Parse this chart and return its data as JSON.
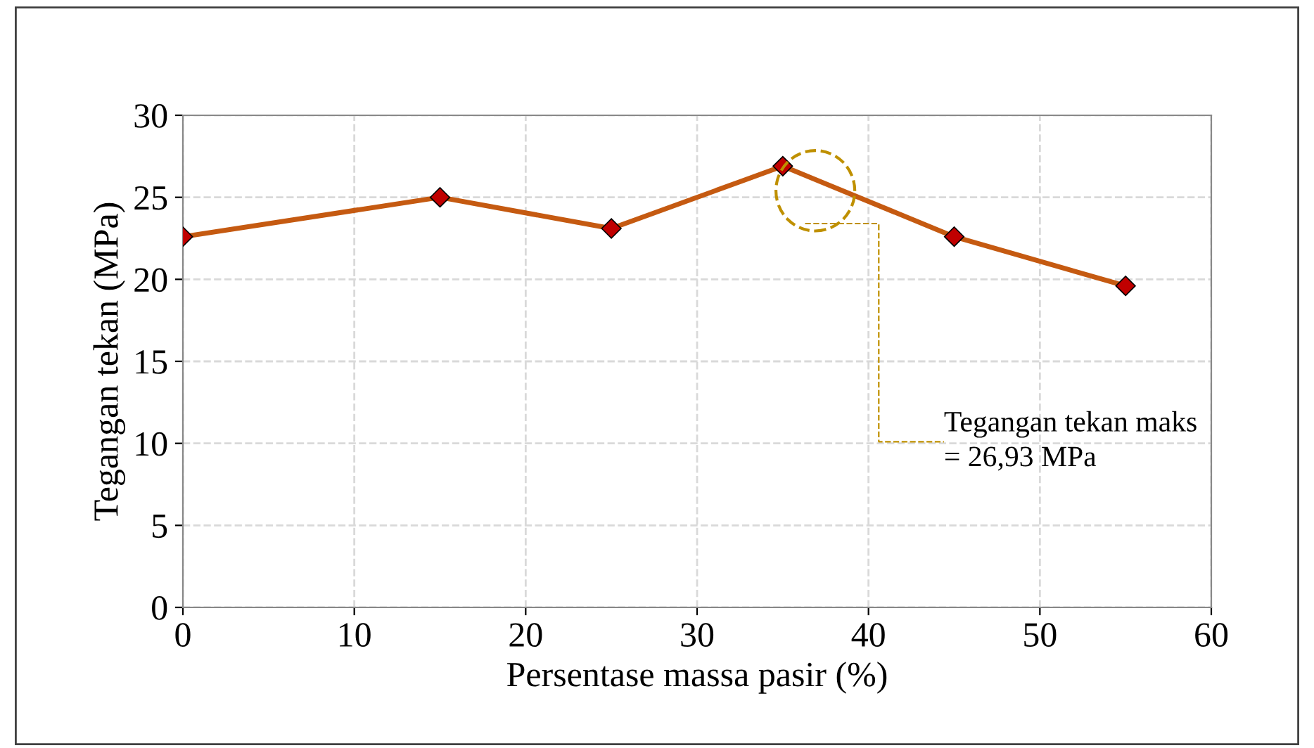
{
  "chart_data": {
    "type": "line",
    "xlabel": "Persentase massa pasir (%)",
    "ylabel": "Tegangan tekan (MPa)",
    "x": [
      0,
      15,
      25,
      35,
      45,
      55
    ],
    "series": [
      {
        "color": "#c55a11",
        "colors": [
          "#c00000",
          "#c00000",
          "#c00000",
          "#c00000",
          "#c00000",
          "#c00000"
        ],
        "values": [
          22.6,
          25.0,
          23.1,
          26.9,
          22.6,
          19.6
        ]
      }
    ],
    "xlim": [
      0,
      60
    ],
    "xticks": [
      0,
      10,
      20,
      30,
      40,
      50,
      60
    ],
    "ylim": [
      0,
      30
    ],
    "yticks": [
      0,
      5,
      10,
      15,
      20,
      25,
      30
    ],
    "grid": true,
    "marker": "diamond",
    "line_style": "solid",
    "annotations": [
      "Tegangan tekan maks\n= 26,93 MPa"
    ]
  }
}
